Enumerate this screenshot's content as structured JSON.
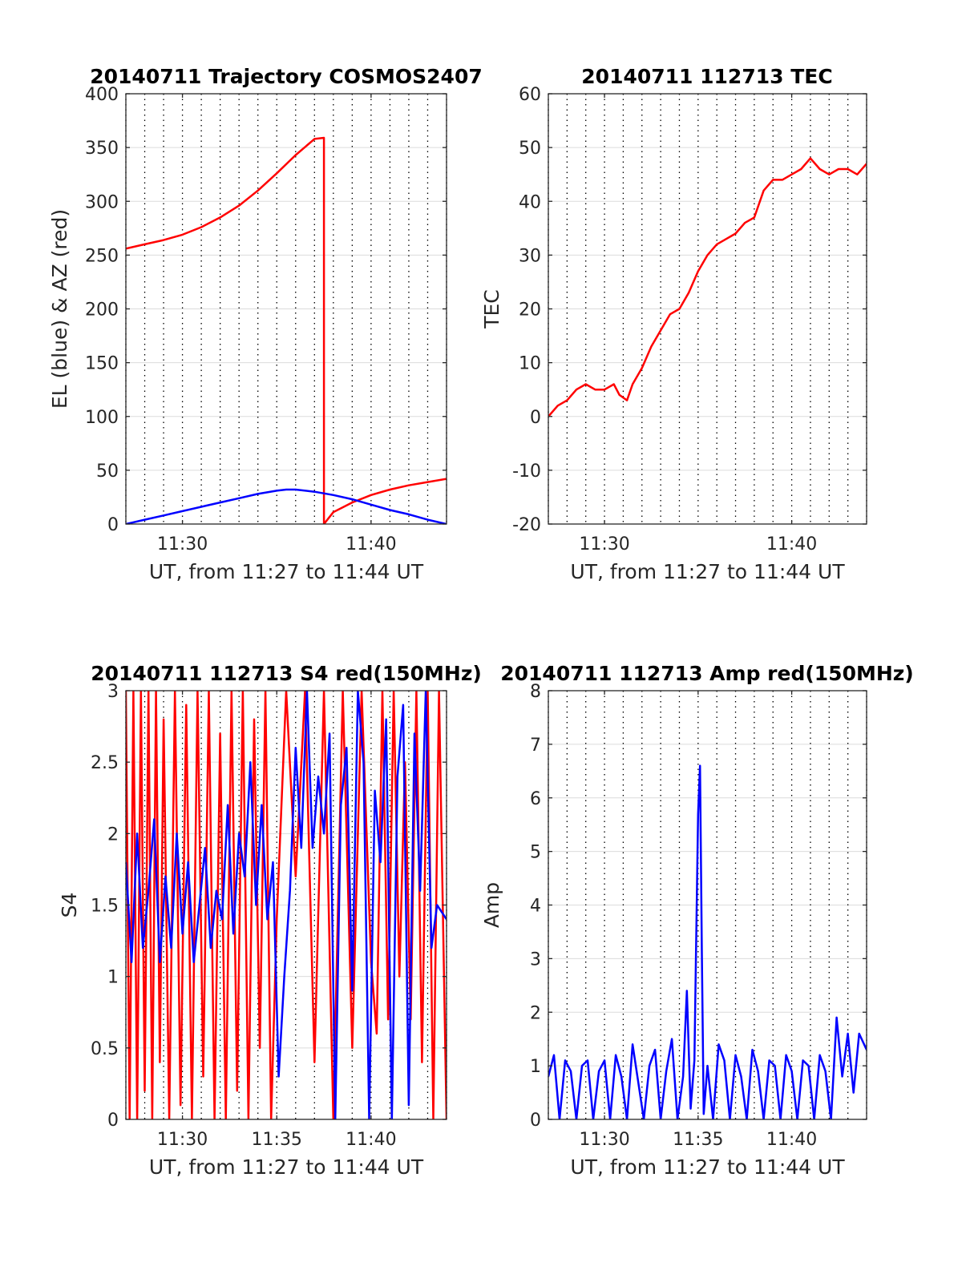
{
  "colors": {
    "red": "#ff0000",
    "blue": "#0000ff",
    "axis": "#262626",
    "grid_major": "#dcdcdc",
    "grid_minor": "#000000"
  },
  "chart_data": [
    {
      "type": "line",
      "title": "20140711 Trajectory COSMOS2407",
      "xlabel": "UT, from 11:27 to 11:44 UT",
      "ylabel": "EL (blue) & AZ (red)",
      "xlim_minutes": [
        687,
        704
      ],
      "ylim": [
        0,
        400
      ],
      "xticks": [
        690,
        700
      ],
      "xtick_labels": [
        "11:30",
        "11:40"
      ],
      "yticks": [
        0,
        50,
        100,
        150,
        200,
        250,
        300,
        350,
        400
      ],
      "ytick_labels": [
        "0",
        "50",
        "100",
        "150",
        "200",
        "250",
        "300",
        "350",
        "400"
      ],
      "grid": true,
      "series": [
        {
          "color": "red",
          "x": [
            687,
            688,
            689,
            690,
            691,
            692,
            693,
            694,
            695,
            696,
            697,
            697.5,
            697.5,
            698,
            699,
            700,
            701,
            702,
            703,
            704
          ],
          "values": [
            256,
            260,
            264,
            269,
            276,
            285,
            296,
            310,
            326,
            343,
            358,
            359,
            0,
            11,
            20,
            27,
            32,
            36,
            39,
            42
          ]
        },
        {
          "color": "blue",
          "x": [
            687,
            688,
            689,
            690,
            691,
            692,
            693,
            694,
            695,
            695.5,
            696,
            697,
            698,
            699,
            700,
            701,
            702,
            703,
            704
          ],
          "values": [
            0,
            4,
            8,
            12,
            16,
            20,
            24,
            28,
            31,
            32,
            32,
            30,
            27,
            23,
            18,
            13,
            9,
            4,
            0
          ]
        }
      ]
    },
    {
      "type": "line",
      "title": "20140711 112713 TEC",
      "xlabel": "UT, from 11:27 to 11:44 UT",
      "ylabel": "TEC",
      "xlim_minutes": [
        687,
        704
      ],
      "ylim": [
        -20,
        60
      ],
      "xticks": [
        690,
        700
      ],
      "xtick_labels": [
        "11:30",
        "11:40"
      ],
      "yticks": [
        -20,
        -10,
        0,
        10,
        20,
        30,
        40,
        50,
        60
      ],
      "ytick_labels": [
        "-20",
        "-10",
        "0",
        "10",
        "20",
        "30",
        "40",
        "50",
        "60"
      ],
      "grid": true,
      "series": [
        {
          "color": "red",
          "x": [
            687,
            687.5,
            688,
            688.5,
            689,
            689.5,
            690,
            690.5,
            690.8,
            691.2,
            691.5,
            692,
            692.5,
            693,
            693.5,
            694,
            694.5,
            695,
            695.5,
            696,
            696.5,
            697,
            697.5,
            698,
            698.5,
            699,
            699.5,
            700,
            700.5,
            701,
            701.5,
            702,
            702.5,
            703,
            703.5,
            704
          ],
          "values": [
            0,
            2,
            3,
            5,
            6,
            5,
            5,
            6,
            4,
            3,
            6,
            9,
            13,
            16,
            19,
            20,
            23,
            27,
            30,
            32,
            33,
            34,
            36,
            37,
            42,
            44,
            44,
            45,
            46,
            48,
            46,
            45,
            46,
            46,
            45,
            47
          ]
        }
      ]
    },
    {
      "type": "line",
      "title": "20140711 112713 S4 red(150MHz)",
      "xlabel": "UT, from 11:27 to 11:44 UT",
      "ylabel": "S4",
      "xlim_minutes": [
        687,
        704
      ],
      "ylim": [
        0,
        3
      ],
      "xticks": [
        690,
        695,
        700
      ],
      "xtick_labels": [
        "11:30",
        "11:35",
        "11:40"
      ],
      "yticks": [
        0,
        0.5,
        1,
        1.5,
        2,
        2.5,
        3
      ],
      "ytick_labels": [
        "0",
        "0.5",
        "1",
        "1.5",
        "2",
        "2.5",
        "3"
      ],
      "grid": true,
      "series": [
        {
          "color": "red",
          "x": [
            687,
            687.2,
            687.4,
            687.6,
            687.8,
            688,
            688.2,
            688.4,
            688.6,
            688.8,
            689,
            689.3,
            689.6,
            689.9,
            690.2,
            690.5,
            690.8,
            691.1,
            691.4,
            691.7,
            692,
            692.3,
            692.6,
            692.9,
            693.2,
            693.5,
            693.8,
            694.1,
            694.4,
            694.7,
            695,
            695.5,
            696,
            696.5,
            697,
            697.5,
            698,
            698.5,
            699,
            699.5,
            700,
            700.3,
            700.6,
            700.9,
            701.2,
            701.5,
            701.8,
            702.1,
            702.4,
            702.7,
            703,
            703.3,
            703.6,
            704
          ],
          "values": [
            3,
            0,
            3,
            0,
            3,
            0.2,
            3,
            0,
            3,
            0.4,
            2.8,
            0,
            3,
            0.1,
            2.9,
            0,
            3,
            0.3,
            3,
            0,
            2.7,
            0,
            3,
            0.2,
            3,
            0,
            2.8,
            0.5,
            3,
            0,
            1.4,
            3,
            1.7,
            3,
            0.4,
            3,
            0,
            3,
            0.5,
            3,
            1.1,
            0.6,
            3,
            0.7,
            3,
            1.0,
            2.5,
            0.7,
            3,
            0.4,
            3,
            0,
            3,
            0
          ]
        },
        {
          "color": "blue",
          "x": [
            687,
            687.3,
            687.6,
            687.9,
            688.2,
            688.5,
            688.8,
            689.1,
            689.4,
            689.7,
            690,
            690.3,
            690.6,
            690.9,
            691.2,
            691.5,
            691.8,
            692.1,
            692.4,
            692.7,
            693,
            693.3,
            693.6,
            693.9,
            694.2,
            694.5,
            694.8,
            695.1,
            695.4,
            695.7,
            696,
            696.3,
            696.6,
            696.9,
            697.2,
            697.5,
            697.8,
            698.1,
            698.4,
            698.7,
            699,
            699.3,
            699.6,
            699.9,
            700.2,
            700.5,
            700.8,
            701.1,
            701.4,
            701.7,
            702,
            702.3,
            702.6,
            702.9,
            703.2,
            703.5,
            704
          ],
          "values": [
            1.8,
            1.1,
            2.0,
            1.2,
            1.6,
            2.1,
            1.1,
            1.7,
            1.2,
            2.0,
            1.3,
            1.8,
            1.1,
            1.5,
            1.9,
            1.2,
            1.6,
            1.4,
            2.2,
            1.3,
            2.0,
            1.7,
            2.5,
            1.5,
            2.2,
            1.4,
            1.8,
            0.3,
            1.0,
            1.6,
            2.6,
            1.9,
            3.0,
            1.9,
            2.4,
            2.0,
            2.7,
            0,
            2.2,
            2.6,
            0.9,
            3.0,
            2.5,
            0,
            2.3,
            1.8,
            2.8,
            0,
            2.4,
            2.9,
            0.1,
            2.7,
            1.6,
            3.0,
            1.2,
            1.5,
            1.4
          ]
        }
      ]
    },
    {
      "type": "line",
      "title": "20140711 112713 Amp red(150MHz)",
      "xlabel": "UT, from 11:27 to 11:44 UT",
      "ylabel": "Amp",
      "xlim_minutes": [
        687,
        704
      ],
      "ylim": [
        0,
        8
      ],
      "xticks": [
        690,
        695,
        700
      ],
      "xtick_labels": [
        "11:30",
        "11:35",
        "11:40"
      ],
      "yticks": [
        0,
        1,
        2,
        3,
        4,
        5,
        6,
        7,
        8
      ],
      "ytick_labels": [
        "0",
        "1",
        "2",
        "3",
        "4",
        "5",
        "6",
        "7",
        "8"
      ],
      "grid": true,
      "series": [
        {
          "color": "blue",
          "x": [
            687,
            687.3,
            687.6,
            687.9,
            688.2,
            688.5,
            688.8,
            689.1,
            689.4,
            689.7,
            690,
            690.3,
            690.6,
            690.9,
            691.2,
            691.5,
            691.8,
            692.1,
            692.4,
            692.7,
            693,
            693.3,
            693.6,
            693.9,
            694.2,
            694.4,
            694.6,
            694.8,
            695,
            695.1,
            695.2,
            695.3,
            695.5,
            695.8,
            696.1,
            696.4,
            696.7,
            697,
            697.3,
            697.6,
            697.9,
            698.2,
            698.5,
            698.8,
            699.1,
            699.4,
            699.7,
            700,
            700.3,
            700.6,
            700.9,
            701.2,
            701.5,
            701.8,
            702.1,
            702.4,
            702.7,
            703,
            703.3,
            703.6,
            704
          ],
          "values": [
            0.8,
            1.2,
            0,
            1.1,
            0.9,
            0,
            1.0,
            1.1,
            0,
            0.9,
            1.1,
            0,
            1.2,
            0.8,
            0,
            1.4,
            0.7,
            0,
            1.0,
            1.3,
            0,
            0.9,
            1.5,
            0,
            0.8,
            2.4,
            0.2,
            1.1,
            5.7,
            6.6,
            3.1,
            0.1,
            1.0,
            0,
            1.4,
            1.1,
            0,
            1.2,
            0.8,
            0,
            1.3,
            0.9,
            0,
            1.1,
            1.0,
            0,
            1.2,
            0.9,
            0,
            1.1,
            1.0,
            0,
            1.2,
            0.9,
            0,
            1.9,
            0.8,
            1.6,
            0.5,
            1.6,
            1.3
          ]
        }
      ]
    }
  ]
}
